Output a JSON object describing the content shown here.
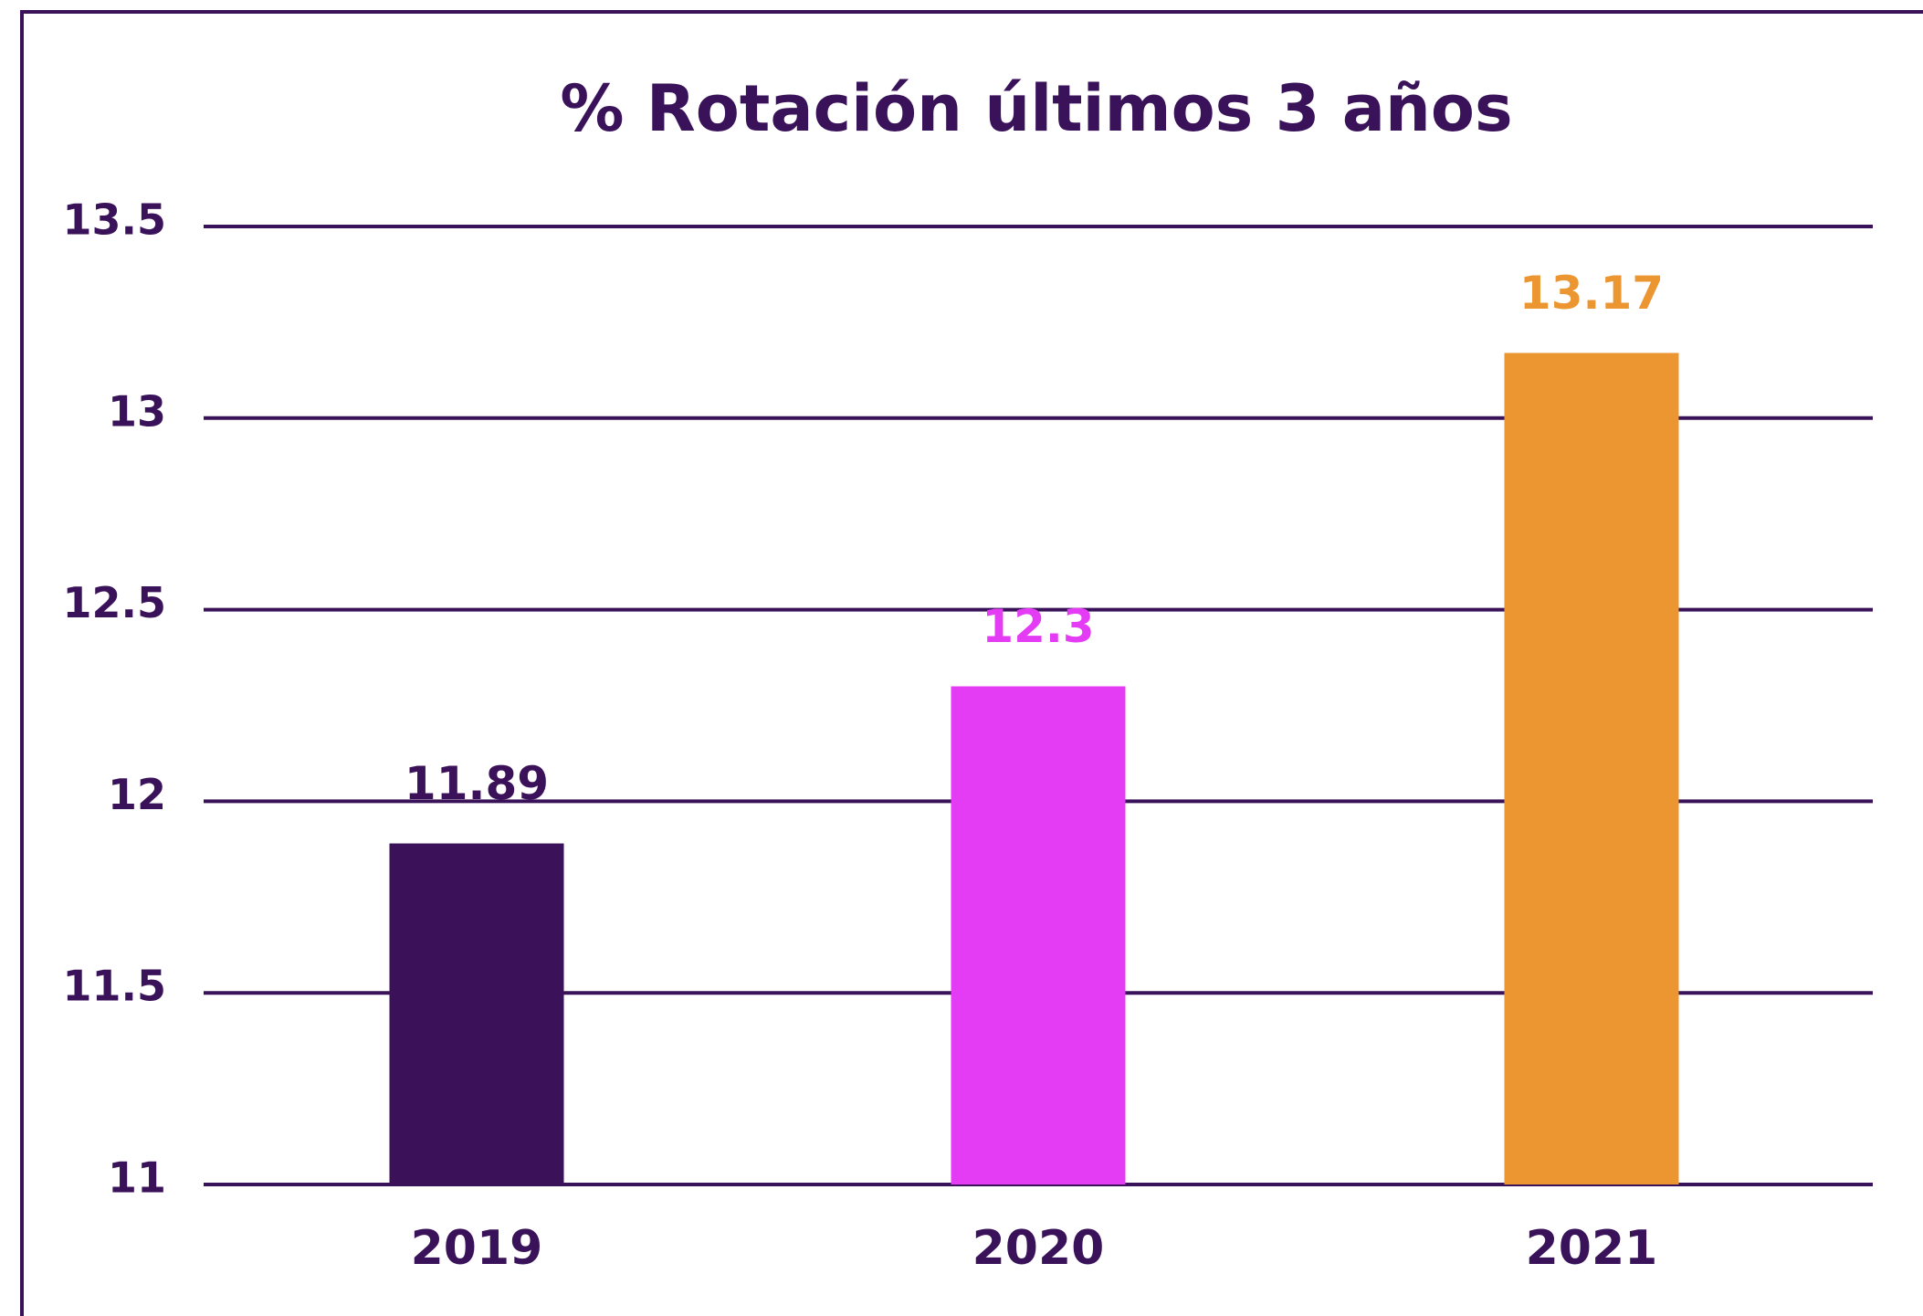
{
  "chart_data": {
    "type": "bar",
    "title": "% Rotación últimos 3 años",
    "categories": [
      "2019",
      "2020",
      "2021"
    ],
    "values": [
      11.89,
      12.3,
      13.17
    ],
    "colors": [
      "#3b1159",
      "#e43cf5",
      "#eb9630"
    ],
    "ylim": [
      11,
      13.5
    ],
    "yticks": [
      11,
      11.5,
      12,
      12.5,
      13,
      13.5
    ],
    "grid": true
  }
}
